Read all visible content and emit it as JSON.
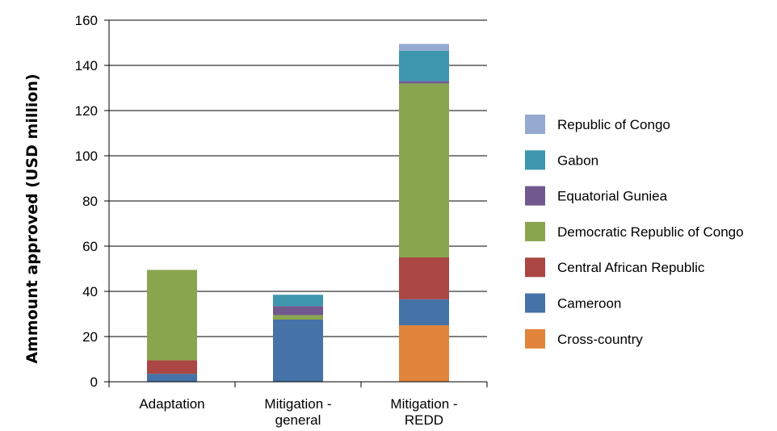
{
  "chart_data": {
    "type": "bar",
    "stacked": true,
    "title": "",
    "xlabel": "",
    "ylabel": "Ammount approved (USD million)",
    "ylim": [
      0,
      160
    ],
    "yticks": [
      "0",
      "20",
      "40",
      "60",
      "80",
      "100",
      "120",
      "140",
      "160"
    ],
    "grid": true,
    "legend_position": "right",
    "categories": [
      [
        "Adaptation"
      ],
      [
        "Mitigation -",
        "general"
      ],
      [
        "Mitigation -",
        "REDD"
      ]
    ],
    "series": [
      {
        "name": "Cross-country",
        "color": "#e0853b",
        "values": [
          0,
          0,
          25
        ]
      },
      {
        "name": "Cameroon",
        "color": "#4572a7",
        "values": [
          3.5,
          27.5,
          11.5
        ]
      },
      {
        "name": "Central African Republic",
        "color": "#aa4643",
        "values": [
          6,
          0,
          18.5
        ]
      },
      {
        "name": "Democratic Republic of Congo",
        "color": "#89a54e",
        "values": [
          40,
          2,
          77
        ]
      },
      {
        "name": "Equatorial Guniea",
        "color": "#71588f",
        "values": [
          0,
          4,
          1
        ]
      },
      {
        "name": "Gabon",
        "color": "#3d96ae",
        "values": [
          0,
          5,
          13.5
        ]
      },
      {
        "name": "Republic of Congo",
        "color": "#95a9d1",
        "values": [
          0,
          0,
          3
        ]
      }
    ]
  }
}
